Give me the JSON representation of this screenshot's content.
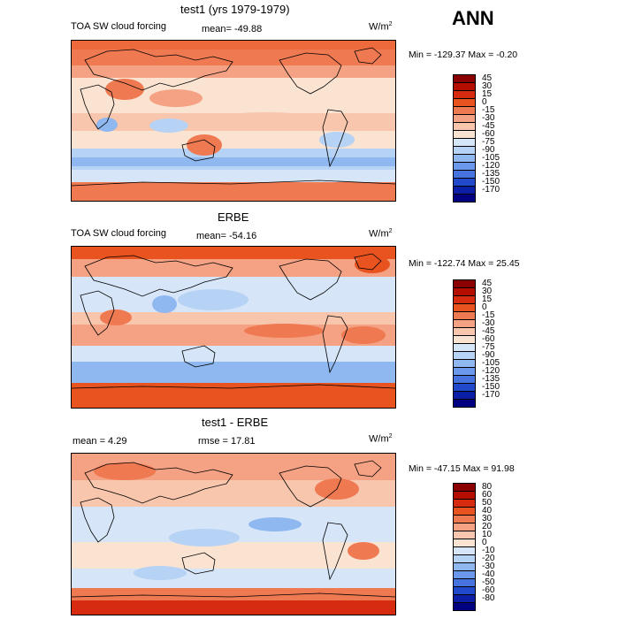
{
  "figure": {
    "season_label": "ANN",
    "units_base": "W/m",
    "units_exp": "2"
  },
  "panels": [
    {
      "title": "test1 (yrs 1979-1979)",
      "variable": "TOA SW cloud forcing",
      "mean_text": "mean= -49.88",
      "minmax_text": "Min = -129.37 Max =  -0.20"
    },
    {
      "title": "ERBE",
      "variable": "TOA SW cloud forcing",
      "mean_text": "mean= -54.16",
      "minmax_text": "Min = -122.74 Max =  25.45"
    },
    {
      "title": "test1 - ERBE",
      "mean_text": "mean =    4.29",
      "rmse_text": "rmse =  17.81",
      "minmax_text": "Min = -47.15 Max =  91.98"
    }
  ],
  "chart_data": [
    {
      "type": "heatmap",
      "title": "test1 (yrs 1979-1979)",
      "subtitle": "TOA SW cloud forcing",
      "units": "W/m2",
      "mean": -49.88,
      "min": -129.37,
      "max": -0.2,
      "colorbar_levels": [
        "45",
        "30",
        "15",
        "0",
        "-15",
        "-30",
        "-45",
        "-60",
        "-75",
        "-90",
        "-105",
        "-120",
        "-135",
        "-150",
        "-170"
      ],
      "colorbar_colors": [
        "#8b0000",
        "#b50d00",
        "#d62b10",
        "#e8531f",
        "#ef7a52",
        "#f4a283",
        "#f8c6ad",
        "#fbe3d2",
        "#d6e6f8",
        "#b6d2f4",
        "#8fb8f0",
        "#6b98ea",
        "#4673e0",
        "#2049cc",
        "#0a1fa6",
        "#000080"
      ]
    },
    {
      "type": "heatmap",
      "title": "ERBE",
      "subtitle": "TOA SW cloud forcing",
      "units": "W/m2",
      "mean": -54.16,
      "min": -122.74,
      "max": 25.45,
      "colorbar_levels": [
        "45",
        "30",
        "15",
        "0",
        "-15",
        "-30",
        "-45",
        "-60",
        "-75",
        "-90",
        "-105",
        "-120",
        "-135",
        "-150",
        "-170"
      ],
      "colorbar_colors": [
        "#8b0000",
        "#b50d00",
        "#d62b10",
        "#e8531f",
        "#ef7a52",
        "#f4a283",
        "#f8c6ad",
        "#fbe3d2",
        "#d6e6f8",
        "#b6d2f4",
        "#8fb8f0",
        "#6b98ea",
        "#4673e0",
        "#2049cc",
        "#0a1fa6",
        "#000080"
      ]
    },
    {
      "type": "heatmap",
      "title": "test1 - ERBE",
      "units": "W/m2",
      "mean": 4.29,
      "rmse": 17.81,
      "min": -47.15,
      "max": 91.98,
      "colorbar_levels": [
        "80",
        "60",
        "50",
        "40",
        "30",
        "20",
        "10",
        "0",
        "-10",
        "-20",
        "-30",
        "-40",
        "-50",
        "-60",
        "-80"
      ],
      "colorbar_colors": [
        "#8b0000",
        "#b50d00",
        "#d62b10",
        "#e8531f",
        "#ef7a52",
        "#f4a283",
        "#f8c6ad",
        "#fbe3d2",
        "#d6e6f8",
        "#b6d2f4",
        "#8fb8f0",
        "#6b98ea",
        "#4673e0",
        "#2049cc",
        "#0a1fa6",
        "#000080"
      ]
    }
  ]
}
